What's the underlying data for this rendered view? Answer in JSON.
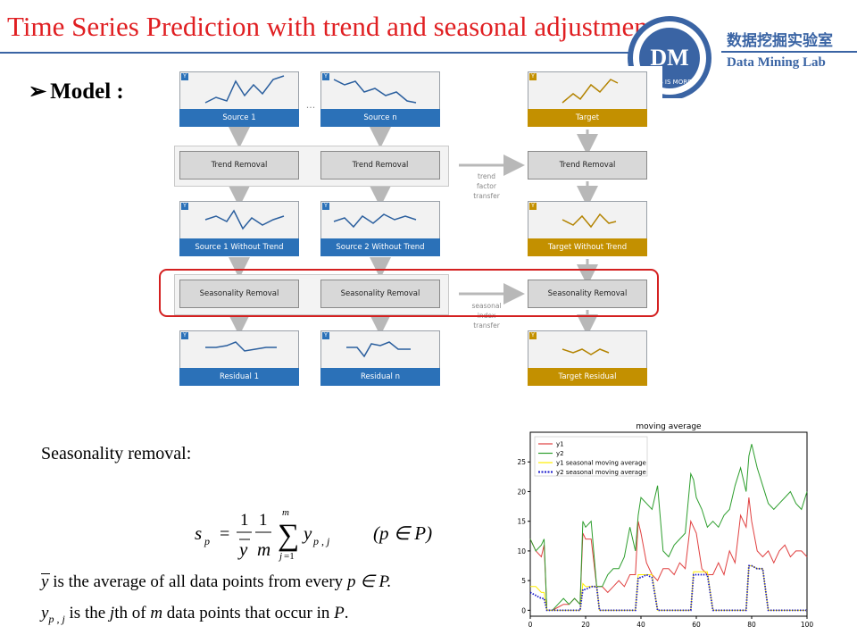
{
  "slide": {
    "title": "Time Series Prediction with trend and seasonal adjustment",
    "heading": "Model :",
    "bullet_glyph": "➢"
  },
  "logo": {
    "mark_text": "DM",
    "ring_text": "LESS IS MORE",
    "lab_name_cn": "数据挖掘实验室",
    "lab_name_en": "Data Mining Lab",
    "color": "#3a64a4"
  },
  "diagram": {
    "y_badge": "Y",
    "ellipsis": "...",
    "sources": [
      "Source 1",
      "Source n"
    ],
    "target": "Target",
    "trend_steps": [
      "Trend Removal",
      "Trend Removal",
      "Trend Removal"
    ],
    "without_trend": [
      "Source 1 Without Trend",
      "Source 2 Without Trend",
      "Target Without Trend"
    ],
    "seasonality_steps": [
      "Seasonality Removal",
      "Seasonality Removal",
      "Seasonality Removal"
    ],
    "residuals": [
      "Residual 1",
      "Residual n",
      "Target Residual"
    ],
    "trend_transfer": [
      "trend",
      "factor",
      "transfer"
    ],
    "seasonal_transfer": [
      "seasonal",
      "index",
      "transfer"
    ],
    "colors": {
      "source": "#2b71b8",
      "target": "#c39000",
      "highlight": "#d42020"
    }
  },
  "text": {
    "seasonality_title": "Seasonality removal:",
    "formula_lhs": "s",
    "formula_sub": "p",
    "formula_condition": "(p ∈ P)",
    "note1_symbol": "y",
    "note1_text": " is the average of all data points from every ",
    "note1_tail": "p ∈ P.",
    "note2_symbol": "y",
    "note2_sub": "p , j",
    "note2_text_a": " is the ",
    "note2_j": "j",
    "note2_text_b": "th of ",
    "note2_m": "m",
    "note2_text_c": " data points that occur in ",
    "note2_P": "P",
    "note2_end": "."
  },
  "chart_data": {
    "type": "line",
    "title": "moving average",
    "xlim": [
      0,
      100
    ],
    "ylim": [
      -1,
      30
    ],
    "xticks": [
      0,
      20,
      40,
      60,
      80,
      100
    ],
    "yticks": [
      0,
      5,
      10,
      15,
      20,
      25
    ],
    "legend_position": "top-left",
    "series": [
      {
        "name": "y1",
        "color": "#e04040",
        "style": "solid",
        "x": [
          0,
          2,
          4,
          5,
          6,
          8,
          10,
          12,
          14,
          16,
          18,
          19,
          20,
          22,
          24,
          26,
          28,
          30,
          32,
          34,
          36,
          38,
          39,
          40,
          42,
          44,
          46,
          48,
          50,
          52,
          54,
          56,
          58,
          59,
          60,
          62,
          64,
          66,
          68,
          70,
          72,
          74,
          76,
          78,
          79,
          80,
          82,
          84,
          86,
          88,
          90,
          92,
          94,
          96,
          98,
          100
        ],
        "y": [
          12,
          10,
          9,
          11,
          0,
          0,
          0.5,
          1,
          1,
          2,
          1,
          13,
          12,
          12,
          4,
          4,
          3,
          4,
          5,
          4,
          6,
          6,
          15,
          13,
          8,
          6,
          5,
          7,
          7,
          6,
          8,
          7,
          15,
          14,
          13,
          7,
          6,
          6,
          8,
          6,
          10,
          8,
          16,
          14,
          19,
          15,
          10,
          9,
          10,
          8,
          10,
          11,
          9,
          10,
          10,
          9
        ]
      },
      {
        "name": "y2",
        "color": "#2e9e2e",
        "style": "solid",
        "x": [
          0,
          2,
          4,
          5,
          6,
          8,
          10,
          12,
          14,
          16,
          18,
          19,
          20,
          22,
          24,
          26,
          28,
          30,
          32,
          34,
          36,
          38,
          39,
          40,
          42,
          44,
          46,
          48,
          50,
          52,
          54,
          56,
          58,
          59,
          60,
          62,
          64,
          66,
          68,
          70,
          72,
          74,
          76,
          78,
          79,
          80,
          82,
          84,
          86,
          88,
          90,
          92,
          94,
          96,
          98,
          100
        ],
        "y": [
          12,
          10,
          11,
          12,
          0,
          0,
          1,
          2,
          1,
          2,
          1,
          15,
          14,
          15,
          4,
          4,
          6,
          7,
          7,
          9,
          14,
          10,
          16,
          19,
          18,
          17,
          21,
          10,
          9,
          11,
          12,
          13,
          23,
          22,
          19,
          17,
          14,
          15,
          14,
          16,
          17,
          21,
          24,
          20,
          26,
          28,
          24,
          21,
          18,
          17,
          18,
          19,
          20,
          18,
          17,
          20
        ]
      },
      {
        "name": "y1 seasonal moving average",
        "color": "#ffee00",
        "style": "solid",
        "x": [
          0,
          2,
          4,
          5,
          6,
          8,
          10,
          12,
          14,
          16,
          18,
          19,
          20,
          22,
          24,
          25,
          26,
          28,
          30,
          36,
          38,
          39,
          40,
          42,
          44,
          46,
          56,
          58,
          59,
          60,
          62,
          64,
          66,
          76,
          78,
          79,
          80,
          82,
          84,
          86,
          90,
          96,
          100
        ],
        "y": [
          4,
          4,
          3,
          3,
          0,
          0,
          0,
          0,
          0,
          0,
          0,
          4.5,
          4,
          4,
          4,
          0,
          0,
          0,
          0,
          0,
          0,
          6,
          6,
          6,
          6,
          0,
          0,
          0,
          6.5,
          6.5,
          6.5,
          6.5,
          0,
          0,
          0,
          7.5,
          7.5,
          7,
          7,
          0,
          0,
          0,
          0
        ]
      },
      {
        "name": "y2 seasonal moving average",
        "color": "#1a1acc",
        "style": "dotted",
        "x": [
          0,
          2,
          4,
          5,
          6,
          8,
          10,
          12,
          14,
          16,
          18,
          19,
          20,
          22,
          24,
          25,
          26,
          28,
          30,
          36,
          38,
          39,
          40,
          42,
          44,
          46,
          56,
          58,
          59,
          60,
          62,
          64,
          66,
          76,
          78,
          79,
          80,
          82,
          84,
          86,
          90,
          96,
          100
        ],
        "y": [
          3,
          2.5,
          2,
          2,
          0,
          0,
          0,
          0,
          0,
          0,
          0,
          3.5,
          3.5,
          4,
          4,
          0,
          0,
          0,
          0,
          0,
          0,
          5.5,
          5.5,
          6,
          5.5,
          0,
          0,
          0,
          6,
          6,
          6,
          6,
          0,
          0,
          0,
          7.5,
          7.5,
          7,
          7,
          0,
          0,
          0,
          0
        ]
      }
    ]
  }
}
